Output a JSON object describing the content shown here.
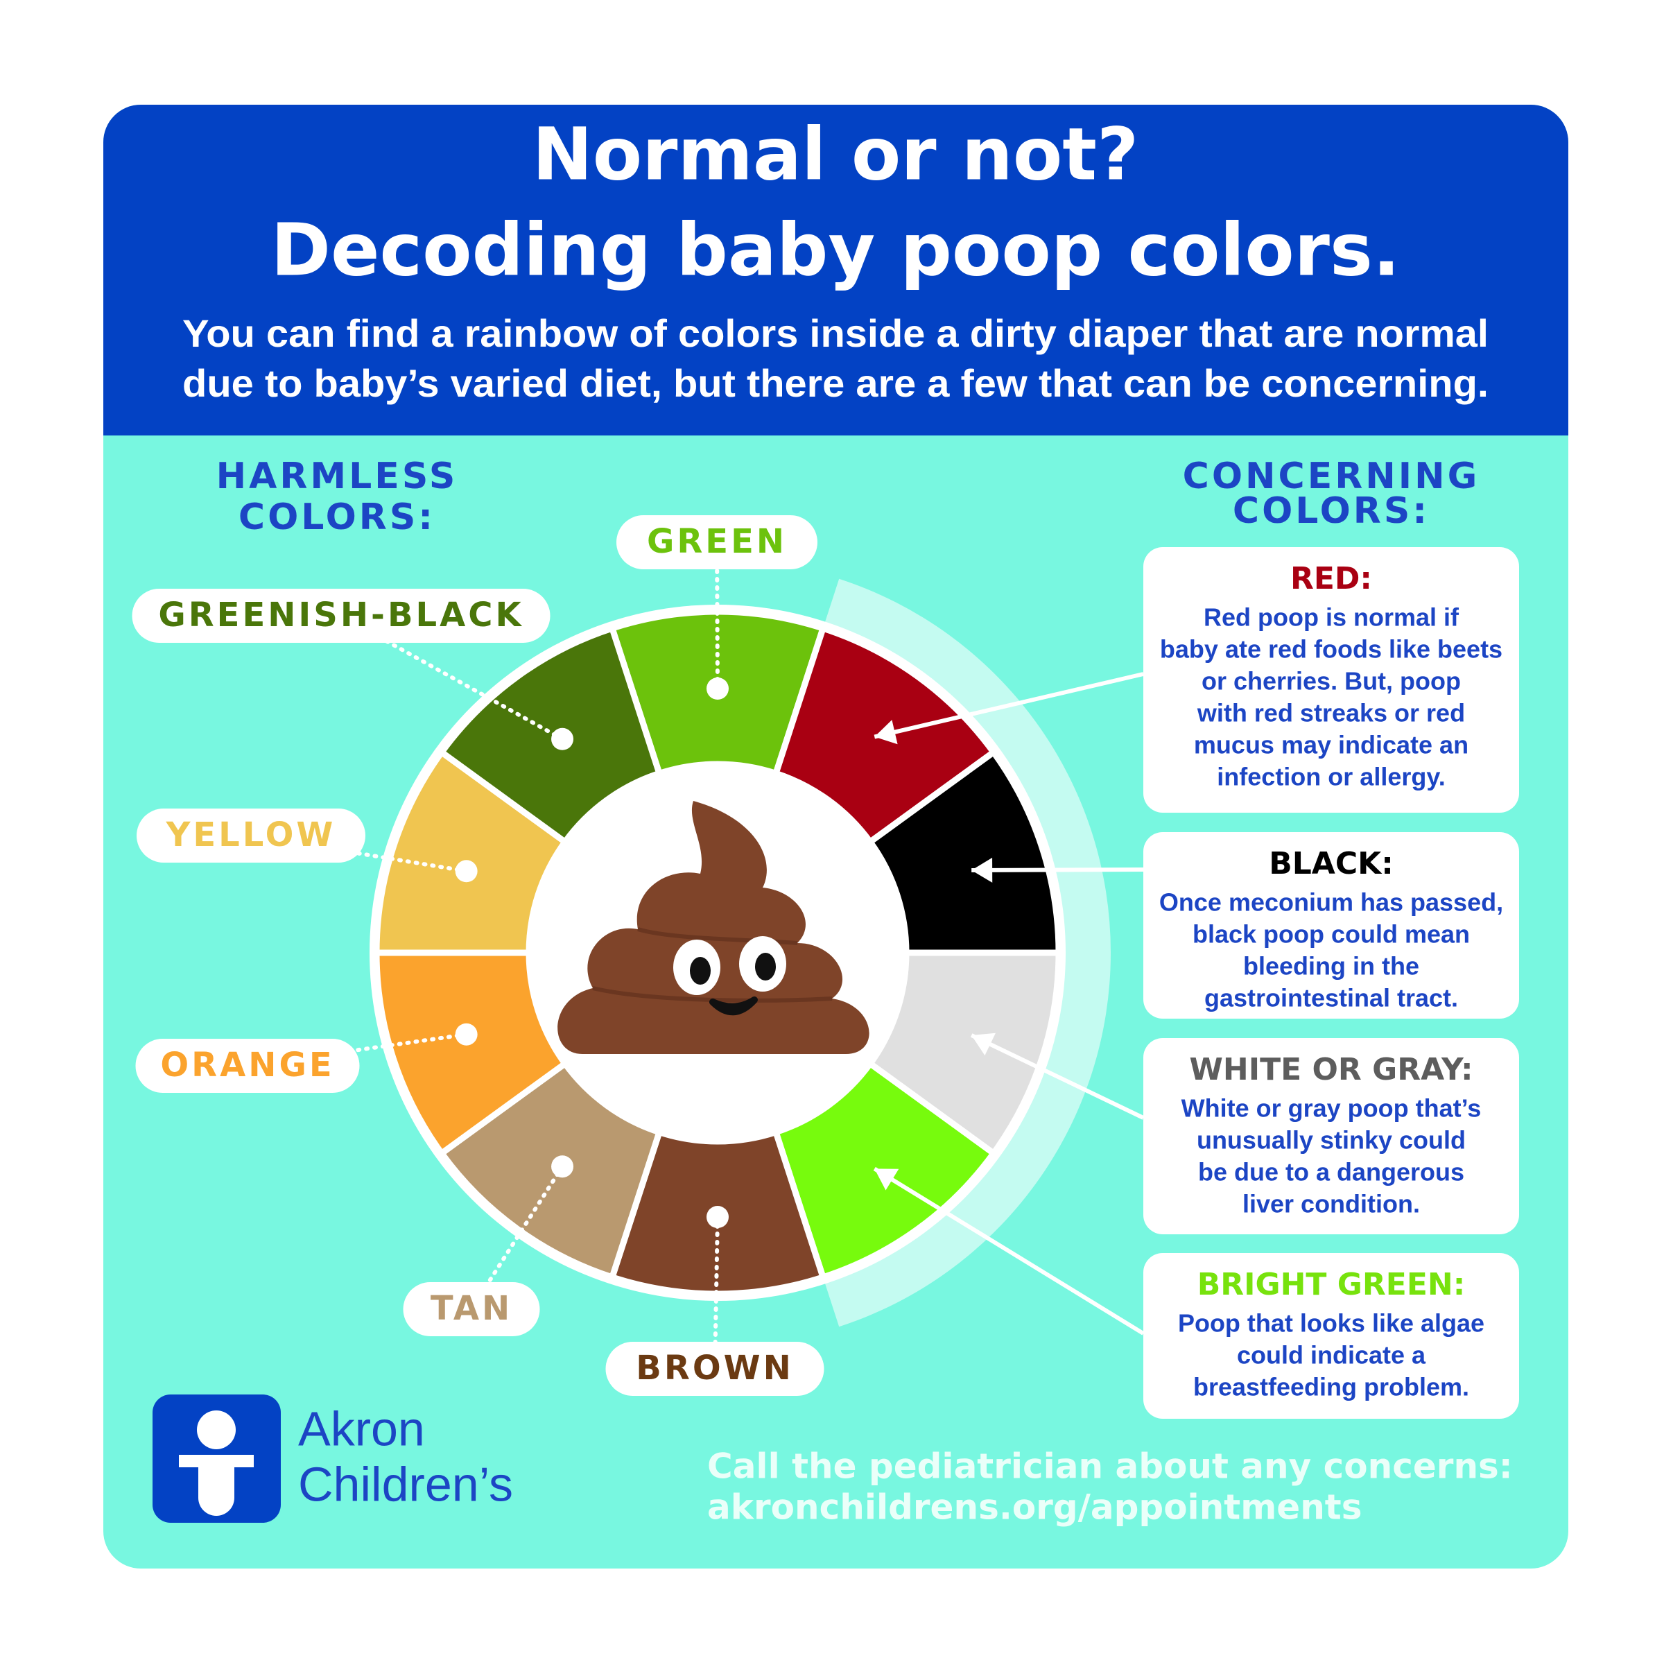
{
  "header": {
    "title_lines": [
      "Normal or not?",
      "Decoding baby poop colors."
    ],
    "subtitle_lines": [
      "You can find a rainbow of colors inside a dirty diaper that are normal",
      "due to baby’s varied diet, but there are a few that can be concerning."
    ]
  },
  "harmless": {
    "heading_lines": [
      "HARMLESS",
      "COLORS:"
    ],
    "colors": [
      {
        "label": "GREEN",
        "color": "#6cc20c"
      },
      {
        "label": "GREENISH-BLACK",
        "color": "#4a760a"
      },
      {
        "label": "YELLOW",
        "color": "#f0c550"
      },
      {
        "label": "ORANGE",
        "color": "#fba32d"
      },
      {
        "label": "TAN",
        "color": "#b9996f"
      },
      {
        "label": "BROWN",
        "color": "#7f4429"
      }
    ]
  },
  "concerning": {
    "heading_lines": [
      "CONCERNING",
      "COLORS:"
    ],
    "items": [
      {
        "title": "RED:",
        "color": "#a90012",
        "title_color": "#a90012",
        "text_lines": [
          "Red poop is normal if",
          "baby ate red foods like beets",
          "or cherries. But, poop",
          "with red streaks or red",
          "mucus may indicate an",
          "infection or allergy."
        ]
      },
      {
        "title": "BLACK:",
        "color": "#000000",
        "title_color": "#000000",
        "text_lines": [
          "Once meconium has passed,",
          "black poop could mean",
          "bleeding in the",
          "gastrointestinal tract."
        ]
      },
      {
        "title": "WHITE OR GRAY:",
        "color": "#e0e0e0",
        "title_color": "#5d5d5d",
        "text_lines": [
          "White or gray poop that’s",
          "unusually stinky could",
          "be due to a dangerous",
          "liver condition."
        ]
      },
      {
        "title": "BRIGHT GREEN:",
        "color": "#77fb0d",
        "title_color": "#77e20d",
        "text_lines": [
          "Poop that looks like algae",
          "could indicate a",
          "breastfeeding problem."
        ]
      }
    ]
  },
  "logo": {
    "lines": [
      "Akron",
      "Children’s"
    ]
  },
  "footer": {
    "lines": [
      "Call the pediatrician about any concerns:",
      "akronchildrens.org/appointments"
    ]
  }
}
